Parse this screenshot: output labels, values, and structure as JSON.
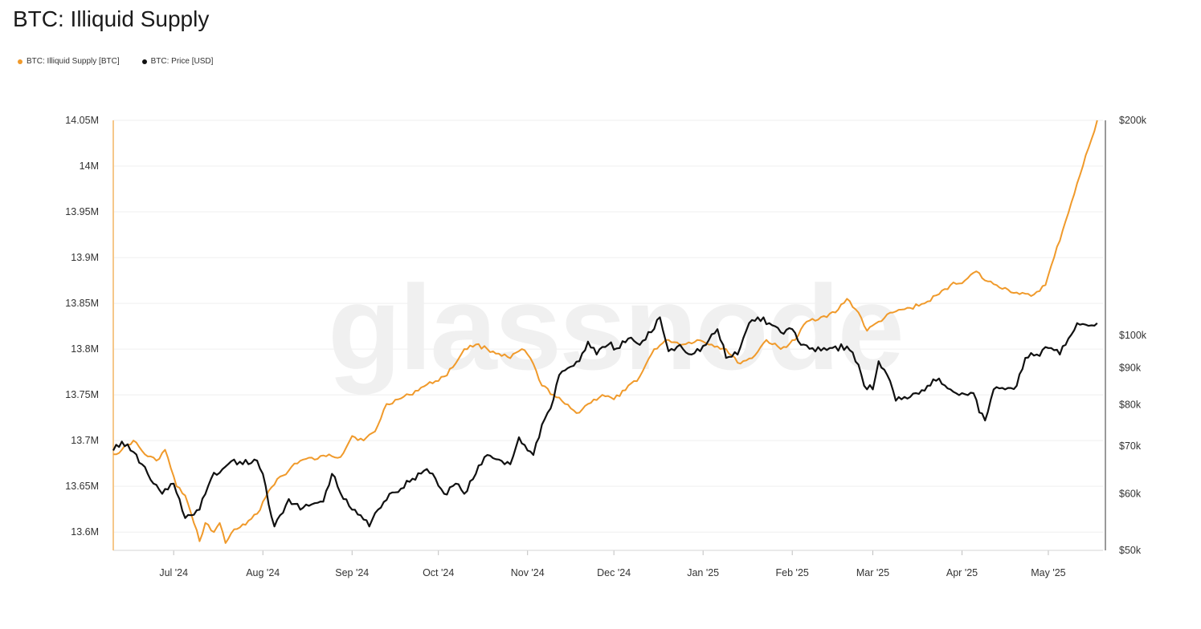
{
  "title": "BTC: Illiquid Supply",
  "watermark": "glassnode",
  "legend": [
    {
      "label": "BTC: Illiquid Supply [BTC]",
      "color": "#f09a2b"
    },
    {
      "label": "BTC: Price [USD]",
      "color": "#111111"
    }
  ],
  "chart_data": {
    "type": "line",
    "grid": true,
    "left_axis": {
      "label": "",
      "range": [
        13.58,
        14.05
      ],
      "ticks": [
        {
          "value": 13.6,
          "label": "13.6M"
        },
        {
          "value": 13.65,
          "label": "13.65M"
        },
        {
          "value": 13.7,
          "label": "13.7M"
        },
        {
          "value": 13.75,
          "label": "13.75M"
        },
        {
          "value": 13.8,
          "label": "13.8M"
        },
        {
          "value": 13.85,
          "label": "13.85M"
        },
        {
          "value": 13.9,
          "label": "13.9M"
        },
        {
          "value": 13.95,
          "label": "13.95M"
        },
        {
          "value": 14.0,
          "label": "14M"
        },
        {
          "value": 14.05,
          "label": "14.05M"
        }
      ]
    },
    "right_axis": {
      "label": "",
      "scale": "log",
      "range": [
        50000,
        200000
      ],
      "ticks": [
        {
          "value": 50000,
          "label": "$50k"
        },
        {
          "value": 60000,
          "label": "$60k"
        },
        {
          "value": 70000,
          "label": "$70k"
        },
        {
          "value": 80000,
          "label": "$80k"
        },
        {
          "value": 90000,
          "label": "$90k"
        },
        {
          "value": 100000,
          "label": "$100k"
        },
        {
          "value": 200000,
          "label": "$200k"
        }
      ]
    },
    "x_axis": {
      "range": [
        "2024-06-10",
        "2025-05-20"
      ],
      "ticks": [
        {
          "date": "2024-07-01",
          "label": "Jul '24"
        },
        {
          "date": "2024-08-01",
          "label": "Aug '24"
        },
        {
          "date": "2024-09-01",
          "label": "Sep '24"
        },
        {
          "date": "2024-10-01",
          "label": "Oct '24"
        },
        {
          "date": "2024-11-01",
          "label": "Nov '24"
        },
        {
          "date": "2024-12-01",
          "label": "Dec '24"
        },
        {
          "date": "2025-01-01",
          "label": "Jan '25"
        },
        {
          "date": "2025-02-01",
          "label": "Feb '25"
        },
        {
          "date": "2025-03-01",
          "label": "Mar '25"
        },
        {
          "date": "2025-04-01",
          "label": "Apr '25"
        },
        {
          "date": "2025-05-01",
          "label": "May '25"
        }
      ]
    },
    "series": [
      {
        "name": "BTC: Illiquid Supply [BTC]",
        "axis": "left",
        "color": "#f09a2b",
        "points": [
          [
            "2024-06-10",
            13.685
          ],
          [
            "2024-06-13",
            13.69
          ],
          [
            "2024-06-17",
            13.7
          ],
          [
            "2024-06-21",
            13.685
          ],
          [
            "2024-06-25",
            13.678
          ],
          [
            "2024-06-28",
            13.69
          ],
          [
            "2024-07-02",
            13.65
          ],
          [
            "2024-07-05",
            13.64
          ],
          [
            "2024-07-08",
            13.61
          ],
          [
            "2024-07-10",
            13.59
          ],
          [
            "2024-07-12",
            13.61
          ],
          [
            "2024-07-15",
            13.6
          ],
          [
            "2024-07-17",
            13.61
          ],
          [
            "2024-07-19",
            13.588
          ],
          [
            "2024-07-22",
            13.603
          ],
          [
            "2024-07-26",
            13.608
          ],
          [
            "2024-07-30",
            13.62
          ],
          [
            "2024-08-03",
            13.645
          ],
          [
            "2024-08-06",
            13.658
          ],
          [
            "2024-08-09",
            13.663
          ],
          [
            "2024-08-12",
            13.675
          ],
          [
            "2024-08-16",
            13.68
          ],
          [
            "2024-08-20",
            13.68
          ],
          [
            "2024-08-24",
            13.685
          ],
          [
            "2024-08-28",
            13.682
          ],
          [
            "2024-09-01",
            13.705
          ],
          [
            "2024-09-05",
            13.7
          ],
          [
            "2024-09-09",
            13.71
          ],
          [
            "2024-09-13",
            13.74
          ],
          [
            "2024-09-17",
            13.745
          ],
          [
            "2024-09-21",
            13.75
          ],
          [
            "2024-09-25",
            13.758
          ],
          [
            "2024-09-30",
            13.765
          ],
          [
            "2024-10-03",
            13.77
          ],
          [
            "2024-10-06",
            13.78
          ],
          [
            "2024-10-10",
            13.8
          ],
          [
            "2024-10-14",
            13.805
          ],
          [
            "2024-10-18",
            13.8
          ],
          [
            "2024-10-22",
            13.795
          ],
          [
            "2024-10-26",
            13.79
          ],
          [
            "2024-10-30",
            13.8
          ],
          [
            "2024-11-02",
            13.79
          ],
          [
            "2024-11-06",
            13.76
          ],
          [
            "2024-11-10",
            13.75
          ],
          [
            "2024-11-14",
            13.74
          ],
          [
            "2024-11-18",
            13.73
          ],
          [
            "2024-11-22",
            13.74
          ],
          [
            "2024-11-27",
            13.75
          ],
          [
            "2024-12-01",
            13.745
          ],
          [
            "2024-12-05",
            13.755
          ],
          [
            "2024-12-10",
            13.77
          ],
          [
            "2024-12-15",
            13.8
          ],
          [
            "2024-12-20",
            13.81
          ],
          [
            "2024-12-25",
            13.805
          ],
          [
            "2024-12-30",
            13.81
          ],
          [
            "2025-01-04",
            13.805
          ],
          [
            "2025-01-09",
            13.8
          ],
          [
            "2025-01-13",
            13.785
          ],
          [
            "2025-01-18",
            13.79
          ],
          [
            "2025-01-23",
            13.81
          ],
          [
            "2025-01-28",
            13.8
          ],
          [
            "2025-02-02",
            13.81
          ],
          [
            "2025-02-06",
            13.83
          ],
          [
            "2025-02-11",
            13.835
          ],
          [
            "2025-02-16",
            13.84
          ],
          [
            "2025-02-20",
            13.855
          ],
          [
            "2025-02-24",
            13.84
          ],
          [
            "2025-02-27",
            13.82
          ],
          [
            "2025-03-03",
            13.83
          ],
          [
            "2025-03-08",
            13.84
          ],
          [
            "2025-03-14",
            13.845
          ],
          [
            "2025-03-19",
            13.85
          ],
          [
            "2025-03-24",
            13.86
          ],
          [
            "2025-03-28",
            13.87
          ],
          [
            "2025-04-02",
            13.875
          ],
          [
            "2025-04-06",
            13.885
          ],
          [
            "2025-04-09",
            13.875
          ],
          [
            "2025-04-13",
            13.87
          ],
          [
            "2025-04-17",
            13.865
          ],
          [
            "2025-04-21",
            13.86
          ],
          [
            "2025-04-25",
            13.858
          ],
          [
            "2025-04-30",
            13.87
          ],
          [
            "2025-05-03",
            13.9
          ],
          [
            "2025-05-06",
            13.93
          ],
          [
            "2025-05-09",
            13.96
          ],
          [
            "2025-05-12",
            13.99
          ],
          [
            "2025-05-15",
            14.02
          ],
          [
            "2025-05-18",
            14.05
          ]
        ]
      },
      {
        "name": "BTC: Price [USD]",
        "axis": "right",
        "color": "#111111",
        "points": [
          [
            "2024-06-10",
            69000
          ],
          [
            "2024-06-13",
            71000
          ],
          [
            "2024-06-16",
            69000
          ],
          [
            "2024-06-20",
            66000
          ],
          [
            "2024-06-24",
            62000
          ],
          [
            "2024-06-27",
            60000
          ],
          [
            "2024-07-01",
            62000
          ],
          [
            "2024-07-03",
            59000
          ],
          [
            "2024-07-05",
            55500
          ],
          [
            "2024-07-07",
            56000
          ],
          [
            "2024-07-10",
            57000
          ],
          [
            "2024-07-14",
            63000
          ],
          [
            "2024-07-18",
            65000
          ],
          [
            "2024-07-22",
            67000
          ],
          [
            "2024-07-25",
            66000
          ],
          [
            "2024-07-29",
            67000
          ],
          [
            "2024-08-01",
            64000
          ],
          [
            "2024-08-03",
            58000
          ],
          [
            "2024-08-05",
            54000
          ],
          [
            "2024-08-07",
            56000
          ],
          [
            "2024-08-10",
            59000
          ],
          [
            "2024-08-14",
            57000
          ],
          [
            "2024-08-18",
            58000
          ],
          [
            "2024-08-22",
            58500
          ],
          [
            "2024-08-25",
            64000
          ],
          [
            "2024-08-29",
            59000
          ],
          [
            "2024-09-01",
            57000
          ],
          [
            "2024-09-04",
            56000
          ],
          [
            "2024-09-07",
            54000
          ],
          [
            "2024-09-10",
            57000
          ],
          [
            "2024-09-14",
            60000
          ],
          [
            "2024-09-18",
            61000
          ],
          [
            "2024-09-22",
            63000
          ],
          [
            "2024-09-27",
            65000
          ],
          [
            "2024-09-30",
            63000
          ],
          [
            "2024-10-03",
            60000
          ],
          [
            "2024-10-07",
            62000
          ],
          [
            "2024-10-10",
            60000
          ],
          [
            "2024-10-14",
            64000
          ],
          [
            "2024-10-18",
            68000
          ],
          [
            "2024-10-22",
            67000
          ],
          [
            "2024-10-26",
            66000
          ],
          [
            "2024-10-29",
            72000
          ],
          [
            "2024-11-01",
            69000
          ],
          [
            "2024-11-03",
            68000
          ],
          [
            "2024-11-06",
            75000
          ],
          [
            "2024-11-09",
            79000
          ],
          [
            "2024-11-12",
            88000
          ],
          [
            "2024-11-15",
            90000
          ],
          [
            "2024-11-19",
            92000
          ],
          [
            "2024-11-22",
            98000
          ],
          [
            "2024-11-25",
            94000
          ],
          [
            "2024-11-29",
            97000
          ],
          [
            "2024-12-03",
            96000
          ],
          [
            "2024-12-06",
            99000
          ],
          [
            "2024-12-10",
            97000
          ],
          [
            "2024-12-14",
            101000
          ],
          [
            "2024-12-17",
            106000
          ],
          [
            "2024-12-20",
            95000
          ],
          [
            "2024-12-24",
            97000
          ],
          [
            "2024-12-28",
            94000
          ],
          [
            "2025-01-02",
            97000
          ],
          [
            "2025-01-06",
            102000
          ],
          [
            "2025-01-09",
            93000
          ],
          [
            "2025-01-13",
            94000
          ],
          [
            "2025-01-17",
            104000
          ],
          [
            "2025-01-20",
            106000
          ],
          [
            "2025-01-24",
            104000
          ],
          [
            "2025-01-28",
            101000
          ],
          [
            "2025-02-01",
            102000
          ],
          [
            "2025-02-04",
            97000
          ],
          [
            "2025-02-08",
            96000
          ],
          [
            "2025-02-14",
            96000
          ],
          [
            "2025-02-20",
            96500
          ],
          [
            "2025-02-24",
            91000
          ],
          [
            "2025-02-26",
            85000
          ],
          [
            "2025-03-01",
            84000
          ],
          [
            "2025-03-03",
            92000
          ],
          [
            "2025-03-06",
            88000
          ],
          [
            "2025-03-09",
            81000
          ],
          [
            "2025-03-12",
            82000
          ],
          [
            "2025-03-16",
            83000
          ],
          [
            "2025-03-20",
            85000
          ],
          [
            "2025-03-24",
            87000
          ],
          [
            "2025-03-28",
            84000
          ],
          [
            "2025-04-01",
            83000
          ],
          [
            "2025-04-05",
            83000
          ],
          [
            "2025-04-07",
            78000
          ],
          [
            "2025-04-09",
            76000
          ],
          [
            "2025-04-12",
            84000
          ],
          [
            "2025-04-16",
            84000
          ],
          [
            "2025-04-20",
            85000
          ],
          [
            "2025-04-23",
            93000
          ],
          [
            "2025-04-27",
            94000
          ],
          [
            "2025-05-01",
            96000
          ],
          [
            "2025-05-05",
            94000
          ],
          [
            "2025-05-08",
            99000
          ],
          [
            "2025-05-11",
            104000
          ],
          [
            "2025-05-14",
            103500
          ],
          [
            "2025-05-18",
            104000
          ]
        ]
      }
    ]
  }
}
